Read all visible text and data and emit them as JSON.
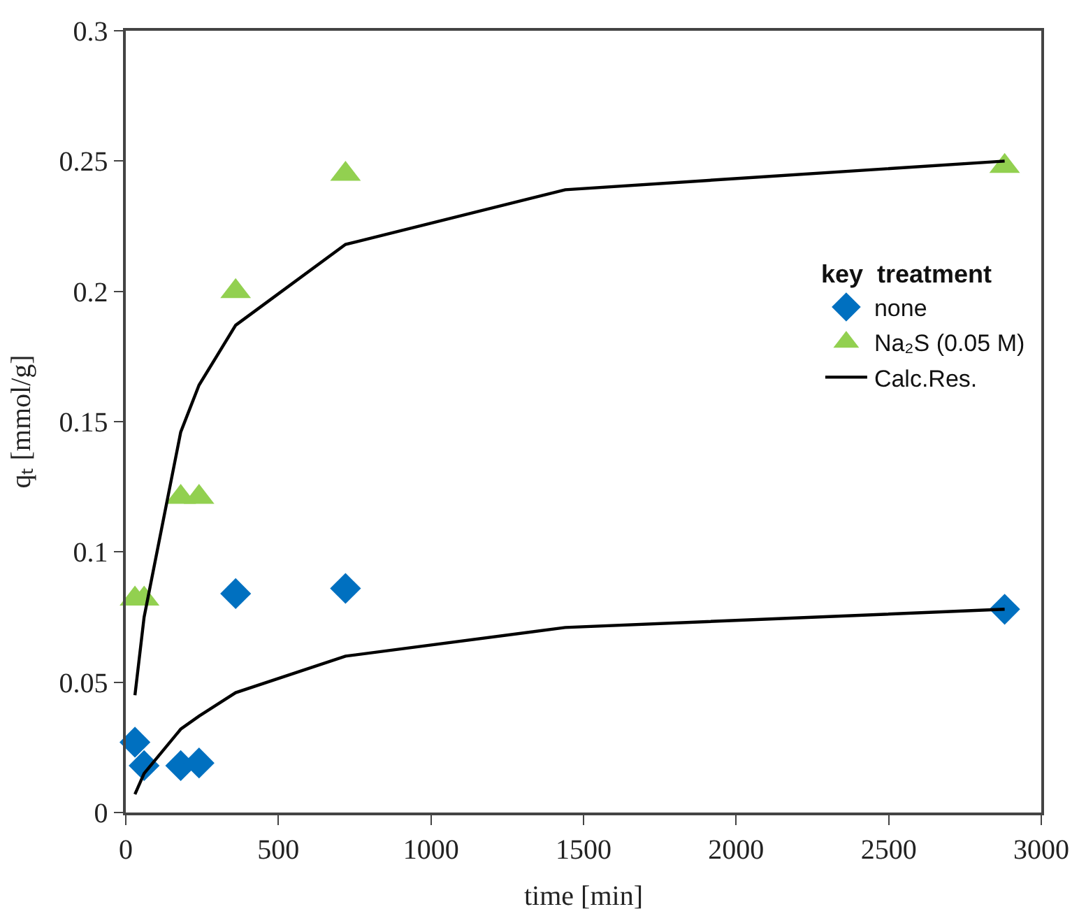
{
  "chart_data": {
    "type": "scatter",
    "xlabel": "time [min]",
    "ylabel": "qₜ [mmol/g]",
    "legend_title": "key  treatment",
    "xlim": [
      0,
      3000
    ],
    "xticks": [
      0,
      500,
      1000,
      1500,
      2000,
      2500,
      3000
    ],
    "ylim": [
      0,
      0.3
    ],
    "yticks": [
      0,
      0.05,
      0.1,
      0.15,
      0.2,
      0.25,
      0.3
    ],
    "grid": false,
    "legend": "right",
    "series": [
      {
        "name": "none",
        "marker": "diamond",
        "color": "#0070c0",
        "x": [
          30,
          60,
          180,
          240,
          360,
          720,
          2880
        ],
        "values": [
          0.027,
          0.018,
          0.018,
          0.019,
          0.084,
          0.086,
          0.078
        ]
      },
      {
        "name": "Na₂S (0.05 M)",
        "marker": "triangle",
        "color": "#92d050",
        "x": [
          30,
          60,
          180,
          240,
          360,
          720,
          2880
        ],
        "values": [
          0.082,
          0.082,
          0.121,
          0.121,
          0.2,
          0.245,
          0.248
        ]
      },
      {
        "name": "Calc.Res.",
        "type": "line",
        "marker": "none",
        "line_style": "solid",
        "color": "#000000",
        "x": [
          30,
          60,
          180,
          240,
          360,
          720,
          1440,
          2880
        ],
        "values": [
          0.045,
          0.075,
          0.146,
          0.164,
          0.187,
          0.218,
          0.239,
          0.25
        ]
      },
      {
        "type": "line",
        "marker": "none",
        "line_style": "solid",
        "color": "#000000",
        "x": [
          30,
          60,
          180,
          240,
          360,
          720,
          1440,
          2880
        ],
        "values": [
          0.007,
          0.015,
          0.032,
          0.037,
          0.046,
          0.06,
          0.071,
          0.078
        ]
      }
    ]
  }
}
